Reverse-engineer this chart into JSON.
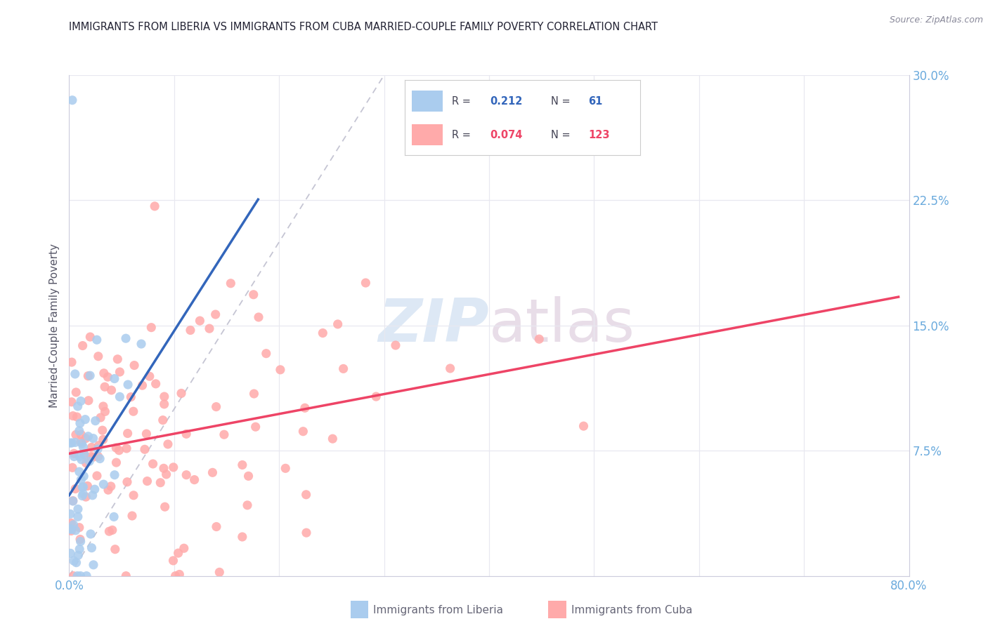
{
  "title": "IMMIGRANTS FROM LIBERIA VS IMMIGRANTS FROM CUBA MARRIED-COUPLE FAMILY POVERTY CORRELATION CHART",
  "source": "Source: ZipAtlas.com",
  "ylabel": "Married-Couple Family Poverty",
  "xlim": [
    0.0,
    0.8
  ],
  "ylim": [
    0.0,
    0.3
  ],
  "right_ytick_color": "#6aaadd",
  "liberia_color": "#aaccee",
  "cuba_color": "#ffaaaa",
  "liberia_line_color": "#3366bb",
  "cuba_line_color": "#ee4466",
  "liberia_R": 0.212,
  "liberia_N": 61,
  "cuba_R": 0.074,
  "cuba_N": 123,
  "watermark_zip": "ZIP",
  "watermark_atlas": "atlas",
  "grid_color": "#e8e8f0",
  "spine_color": "#ccccdd"
}
